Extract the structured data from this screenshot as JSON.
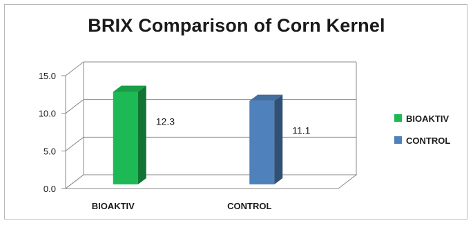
{
  "chart_data": {
    "type": "bar",
    "title": "BRIX Comparison of Corn Kernel",
    "categories": [
      "BIOAKTIV",
      "CONTROL"
    ],
    "series": [
      {
        "name": "BIOAKTIV",
        "values": [
          12.3,
          null
        ],
        "color": "#1db954"
      },
      {
        "name": "CONTROL",
        "values": [
          null,
          11.1
        ],
        "color": "#4f81bd"
      }
    ],
    "data_labels": [
      "12.3",
      "11.1"
    ],
    "yticks": [
      "0.0",
      "5.0",
      "10.0",
      "15.0"
    ],
    "ylim": [
      0,
      15
    ],
    "grid": true,
    "legend": "right",
    "style": "3d-column"
  }
}
